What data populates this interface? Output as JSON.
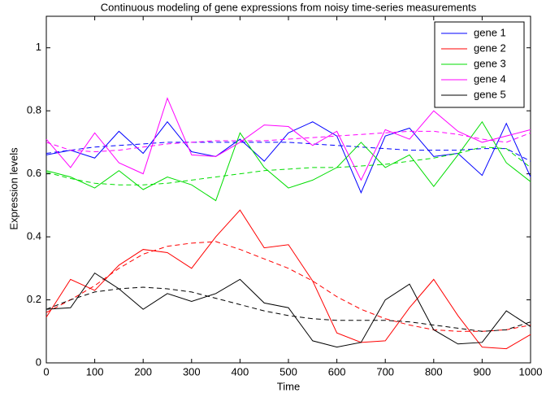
{
  "chart_data": {
    "type": "line",
    "title": "Continuous modeling of gene expressions from noisy time-series measurements",
    "xlabel": "Time",
    "ylabel": "Expression levels",
    "x": [
      0,
      50,
      100,
      150,
      200,
      250,
      300,
      350,
      400,
      450,
      500,
      550,
      600,
      650,
      700,
      750,
      800,
      850,
      900,
      950,
      1000
    ],
    "xlim": [
      0,
      1000
    ],
    "xticks": [
      0,
      100,
      200,
      300,
      400,
      500,
      600,
      700,
      800,
      900,
      1000
    ],
    "ylim": [
      0,
      1.1
    ],
    "yticks": [
      0,
      0.2,
      0.4,
      0.6,
      0.8,
      1
    ],
    "legend": "top-right",
    "series": [
      {
        "name": "gene 1",
        "color": "#0000ff",
        "values": [
          0.66,
          0.675,
          0.65,
          0.735,
          0.665,
          0.765,
          0.67,
          0.655,
          0.71,
          0.64,
          0.73,
          0.765,
          0.72,
          0.54,
          0.72,
          0.745,
          0.655,
          0.665,
          0.595,
          0.76,
          0.59
        ],
        "fit": [
          0.665,
          0.675,
          0.685,
          0.69,
          0.695,
          0.7,
          0.7,
          0.7,
          0.7,
          0.7,
          0.7,
          0.695,
          0.69,
          0.685,
          0.68,
          0.675,
          0.675,
          0.675,
          0.68,
          0.68,
          0.64
        ]
      },
      {
        "name": "gene 2",
        "color": "#ff0000",
        "values": [
          0.145,
          0.265,
          0.23,
          0.31,
          0.36,
          0.35,
          0.3,
          0.4,
          0.485,
          0.365,
          0.375,
          0.26,
          0.095,
          0.065,
          0.07,
          0.175,
          0.265,
          0.15,
          0.05,
          0.045,
          0.09
        ],
        "fit": [
          0.16,
          0.2,
          0.245,
          0.3,
          0.345,
          0.37,
          0.38,
          0.385,
          0.36,
          0.33,
          0.3,
          0.26,
          0.21,
          0.17,
          0.14,
          0.12,
          0.105,
          0.1,
          0.1,
          0.105,
          0.12
        ]
      },
      {
        "name": "gene 3",
        "color": "#00dd00",
        "values": [
          0.61,
          0.59,
          0.555,
          0.61,
          0.55,
          0.59,
          0.565,
          0.515,
          0.73,
          0.62,
          0.555,
          0.58,
          0.62,
          0.7,
          0.62,
          0.66,
          0.56,
          0.66,
          0.765,
          0.635,
          0.575
        ],
        "fit": [
          0.605,
          0.585,
          0.57,
          0.565,
          0.565,
          0.57,
          0.58,
          0.59,
          0.6,
          0.61,
          0.615,
          0.62,
          0.62,
          0.625,
          0.63,
          0.64,
          0.65,
          0.665,
          0.685,
          0.68,
          0.62
        ]
      },
      {
        "name": "gene 4",
        "color": "#ff00ff",
        "values": [
          0.71,
          0.62,
          0.73,
          0.635,
          0.6,
          0.84,
          0.66,
          0.655,
          0.7,
          0.755,
          0.75,
          0.69,
          0.735,
          0.58,
          0.74,
          0.71,
          0.8,
          0.735,
          0.7,
          0.72,
          0.74
        ],
        "fit": [
          0.7,
          0.675,
          0.67,
          0.675,
          0.685,
          0.695,
          0.7,
          0.705,
          0.705,
          0.705,
          0.71,
          0.715,
          0.72,
          0.725,
          0.73,
          0.735,
          0.735,
          0.725,
          0.71,
          0.7,
          0.73
        ]
      },
      {
        "name": "gene 5",
        "color": "#000000",
        "values": [
          0.17,
          0.175,
          0.285,
          0.235,
          0.17,
          0.22,
          0.195,
          0.22,
          0.265,
          0.19,
          0.175,
          0.07,
          0.05,
          0.065,
          0.2,
          0.25,
          0.105,
          0.06,
          0.065,
          0.165,
          0.115
        ],
        "fit": [
          0.17,
          0.2,
          0.225,
          0.235,
          0.24,
          0.235,
          0.225,
          0.205,
          0.185,
          0.165,
          0.15,
          0.14,
          0.135,
          0.135,
          0.135,
          0.13,
          0.12,
          0.11,
          0.1,
          0.105,
          0.13
        ]
      }
    ]
  }
}
